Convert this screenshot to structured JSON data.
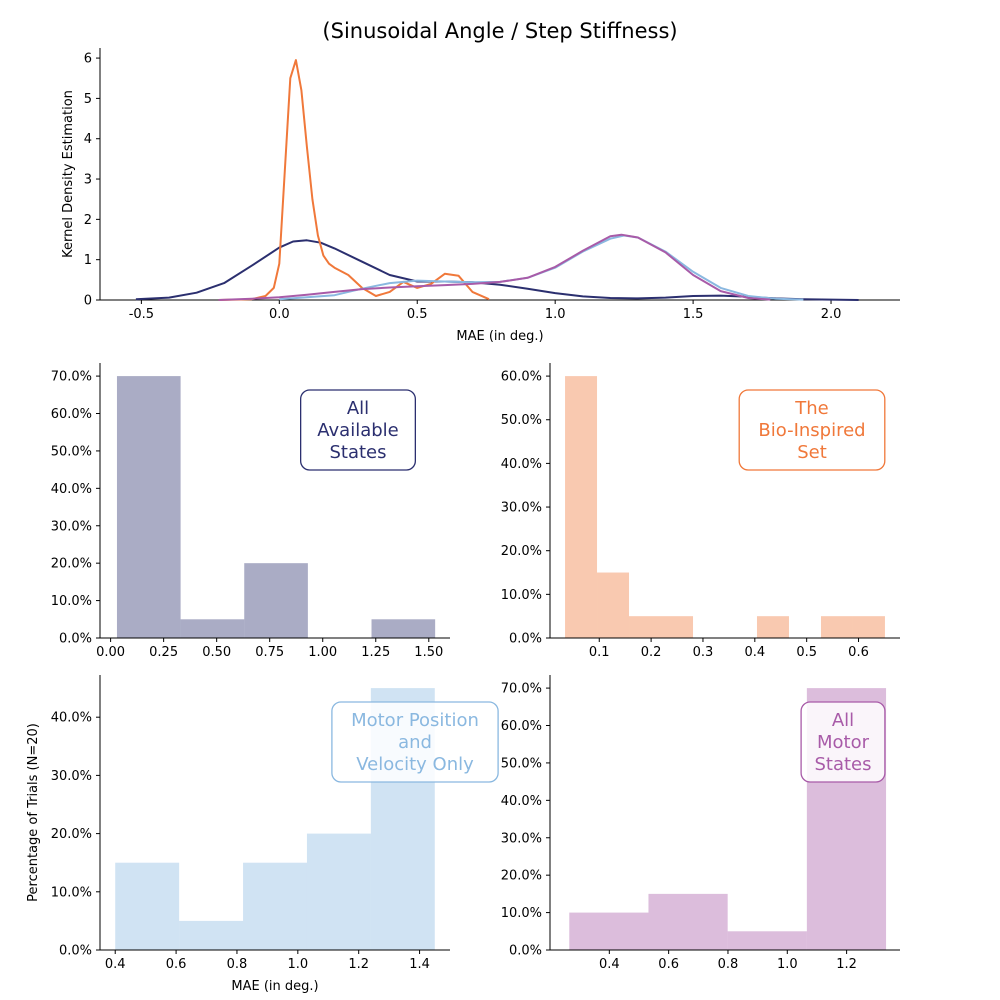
{
  "chart_data": {
    "title": "(Sinusoidal Angle / Step Stiffness)",
    "colors": {
      "all_states": "#2b2f6f",
      "bio_inspired": "#f0783a",
      "motor_pos_vel": "#8ab8e0",
      "all_motor": "#a85ba8"
    },
    "kde": {
      "type": "line",
      "xlabel": "MAE (in deg.)",
      "ylabel": "Kernel Density Estimation",
      "xlim": [
        -0.65,
        2.25
      ],
      "ylim": [
        0,
        6.25
      ],
      "xticks": [
        -0.5,
        0.0,
        0.5,
        1.0,
        1.5,
        2.0
      ],
      "yticks": [
        0,
        1,
        2,
        3,
        4,
        5,
        6
      ],
      "series": [
        {
          "key": "all_states",
          "x": [
            -0.52,
            -0.4,
            -0.3,
            -0.2,
            -0.1,
            0.0,
            0.05,
            0.1,
            0.15,
            0.2,
            0.3,
            0.4,
            0.5,
            0.6,
            0.7,
            0.8,
            0.9,
            1.0,
            1.1,
            1.2,
            1.3,
            1.4,
            1.5,
            1.6,
            1.7,
            1.8,
            1.9,
            2.0,
            2.1
          ],
          "y": [
            0.02,
            0.06,
            0.18,
            0.42,
            0.85,
            1.3,
            1.45,
            1.48,
            1.42,
            1.28,
            0.95,
            0.62,
            0.46,
            0.46,
            0.44,
            0.38,
            0.28,
            0.17,
            0.09,
            0.05,
            0.04,
            0.06,
            0.1,
            0.11,
            0.08,
            0.04,
            0.02,
            0.01,
            0.0
          ]
        },
        {
          "key": "bio_inspired",
          "x": [
            -0.22,
            -0.1,
            -0.05,
            -0.02,
            0.0,
            0.02,
            0.04,
            0.06,
            0.08,
            0.1,
            0.12,
            0.14,
            0.16,
            0.18,
            0.2,
            0.25,
            0.3,
            0.35,
            0.4,
            0.45,
            0.5,
            0.55,
            0.6,
            0.65,
            0.7,
            0.76
          ],
          "y": [
            0.0,
            0.02,
            0.1,
            0.3,
            0.9,
            3.2,
            5.5,
            5.95,
            5.2,
            3.8,
            2.5,
            1.6,
            1.1,
            0.9,
            0.8,
            0.62,
            0.3,
            0.1,
            0.2,
            0.45,
            0.3,
            0.4,
            0.65,
            0.6,
            0.2,
            0.02
          ]
        },
        {
          "key": "motor_pos_vel",
          "x": [
            0.0,
            0.2,
            0.3,
            0.4,
            0.5,
            0.6,
            0.7,
            0.8,
            0.9,
            1.0,
            1.1,
            1.2,
            1.25,
            1.3,
            1.4,
            1.5,
            1.6,
            1.7,
            1.8,
            1.9
          ],
          "y": [
            0.02,
            0.12,
            0.28,
            0.42,
            0.48,
            0.46,
            0.44,
            0.45,
            0.55,
            0.8,
            1.2,
            1.52,
            1.6,
            1.55,
            1.2,
            0.7,
            0.3,
            0.1,
            0.03,
            0.01
          ]
        },
        {
          "key": "all_motor",
          "x": [
            -0.22,
            -0.1,
            0.0,
            0.1,
            0.2,
            0.3,
            0.4,
            0.5,
            0.6,
            0.7,
            0.8,
            0.9,
            1.0,
            1.1,
            1.2,
            1.24,
            1.3,
            1.4,
            1.5,
            1.6,
            1.7,
            1.78
          ],
          "y": [
            0.0,
            0.03,
            0.07,
            0.13,
            0.2,
            0.27,
            0.31,
            0.34,
            0.37,
            0.4,
            0.45,
            0.55,
            0.82,
            1.22,
            1.58,
            1.62,
            1.55,
            1.18,
            0.62,
            0.22,
            0.05,
            0.01
          ]
        }
      ]
    },
    "histograms": [
      {
        "key": "all_states",
        "label": "All\nAvailable\nStates",
        "xlim": [
          -0.05,
          1.6
        ],
        "ylim": [
          0,
          0.735
        ],
        "xticks": [
          0.0,
          0.25,
          0.5,
          0.75,
          1.0,
          1.25,
          1.5
        ],
        "xtick_labels": [
          "0.00",
          "0.25",
          "0.50",
          "0.75",
          "1.00",
          "1.25",
          "1.50"
        ],
        "yticks": [
          0,
          0.1,
          0.2,
          0.3,
          0.4,
          0.5,
          0.6,
          0.7
        ],
        "ytick_labels": [
          "0.0%",
          "10.0%",
          "20.0%",
          "30.0%",
          "40.0%",
          "50.0%",
          "60.0%",
          "70.0%"
        ],
        "edges": [
          0.03,
          0.33,
          0.63,
          0.93,
          1.23,
          1.53
        ],
        "values": [
          0.7,
          0.05,
          0.2,
          0.0,
          0.05
        ],
        "xlabel": "",
        "ylabel": ""
      },
      {
        "key": "bio_inspired",
        "label": "The\nBio-Inspired\nSet",
        "xlim": [
          0.005,
          0.68
        ],
        "ylim": [
          0,
          0.63
        ],
        "xticks": [
          0.1,
          0.2,
          0.3,
          0.4,
          0.5,
          0.6
        ],
        "xtick_labels": [
          "0.1",
          "0.2",
          "0.3",
          "0.4",
          "0.5",
          "0.6"
        ],
        "yticks": [
          0,
          0.1,
          0.2,
          0.3,
          0.4,
          0.5,
          0.6
        ],
        "ytick_labels": [
          "0.0%",
          "10.0%",
          "20.0%",
          "30.0%",
          "40.0%",
          "50.0%",
          "60.0%"
        ],
        "edges": [
          0.034,
          0.0957,
          0.1574,
          0.2191,
          0.2808,
          0.3425,
          0.4042,
          0.4659,
          0.5276,
          0.5893,
          0.651
        ],
        "values": [
          0.6,
          0.15,
          0.05,
          0.05,
          0.0,
          0.0,
          0.05,
          0.0,
          0.05,
          0.05
        ],
        "xlabel": "",
        "ylabel": ""
      },
      {
        "key": "motor_pos_vel",
        "label": "Motor Position\nand\nVelocity Only",
        "xlim": [
          0.35,
          1.5
        ],
        "ylim": [
          0,
          0.4725
        ],
        "xticks": [
          0.4,
          0.6,
          0.8,
          1.0,
          1.2,
          1.4
        ],
        "xtick_labels": [
          "0.4",
          "0.6",
          "0.8",
          "1.0",
          "1.2",
          "1.4"
        ],
        "yticks": [
          0,
          0.1,
          0.2,
          0.3,
          0.4
        ],
        "ytick_labels": [
          "0.0%",
          "10.0%",
          "20.0%",
          "30.0%",
          "40.0%"
        ],
        "edges": [
          0.4,
          0.61,
          0.82,
          1.03,
          1.24,
          1.45
        ],
        "values": [
          0.15,
          0.05,
          0.15,
          0.2,
          0.45
        ],
        "xlabel": "MAE (in deg.)",
        "ylabel": "Percentage of Trials (N=20)"
      },
      {
        "key": "all_motor",
        "label": "All\nMotor\nStates",
        "xlim": [
          0.2,
          1.38
        ],
        "ylim": [
          0,
          0.735
        ],
        "xticks": [
          0.4,
          0.6,
          0.8,
          1.0,
          1.2
        ],
        "xtick_labels": [
          "0.4",
          "0.6",
          "0.8",
          "1.0",
          "1.2"
        ],
        "yticks": [
          0,
          0.1,
          0.2,
          0.3,
          0.4,
          0.5,
          0.6,
          0.7
        ],
        "ytick_labels": [
          "0.0%",
          "10.0%",
          "20.0%",
          "30.0%",
          "40.0%",
          "50.0%",
          "60.0%",
          "70.0%"
        ],
        "edges": [
          0.265,
          0.532,
          0.799,
          1.066,
          1.333
        ],
        "values": [
          0.1,
          0.15,
          0.05,
          0.7
        ],
        "xlabel": "",
        "ylabel": ""
      }
    ]
  }
}
